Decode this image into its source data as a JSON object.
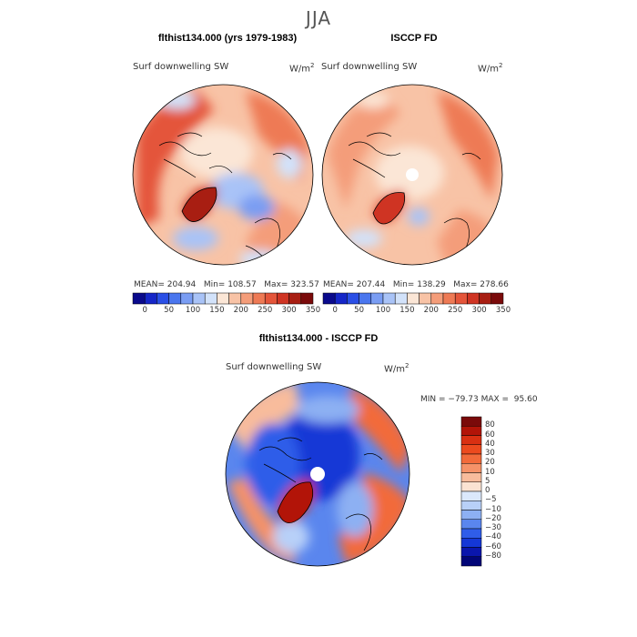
{
  "page": {
    "season": "JJA",
    "panels": [
      {
        "title": "flthist134.000 (yrs 1979-1983)",
        "field": "Surf downwelling SW",
        "units": "W/m",
        "units_sup": "2",
        "mean": "MEAN= 204.94",
        "min": "Min= 108.57",
        "max": "Max= 323.57"
      },
      {
        "title": "ISCCP FD",
        "field": "Surf downwelling SW",
        "units": "W/m",
        "units_sup": "2",
        "mean": "MEAN= 207.44",
        "min": "Min= 138.29",
        "max": "Max= 278.66"
      }
    ],
    "diff_panel": {
      "title": "flthist134.000 - ISCCP FD",
      "field": "Surf downwelling SW",
      "units": "W/m",
      "units_sup": "2",
      "minmax": "MIN = −79.73 MAX =  95.60"
    },
    "abs_colorbar": {
      "ticks": [
        "0",
        "50",
        "100",
        "150",
        "200",
        "250",
        "300",
        "350"
      ],
      "colors": [
        "#0a0a8c",
        "#1526c8",
        "#2a4fe6",
        "#4a76ee",
        "#7a9df3",
        "#a9c3f7",
        "#d2e2fa",
        "#fbe6d6",
        "#f8c3a6",
        "#f49d7a",
        "#ee7a55",
        "#e4553a",
        "#cf3423",
        "#a81e12",
        "#7a0a0a"
      ]
    },
    "diff_colorbar": {
      "ticks": [
        "80",
        "60",
        "40",
        "30",
        "20",
        "10",
        "5",
        "0",
        "−5",
        "−10",
        "−20",
        "−30",
        "−40",
        "−60",
        "−80"
      ],
      "colors": [
        "#7a0a0a",
        "#b21408",
        "#d93012",
        "#ec4a1e",
        "#f26a3a",
        "#f59268",
        "#f8bc9c",
        "#fbe3d2",
        "#dbe8fb",
        "#b8d0f8",
        "#8db0f3",
        "#5a86ee",
        "#2f5de9",
        "#1437d6",
        "#0a16ad",
        "#020678"
      ]
    }
  }
}
